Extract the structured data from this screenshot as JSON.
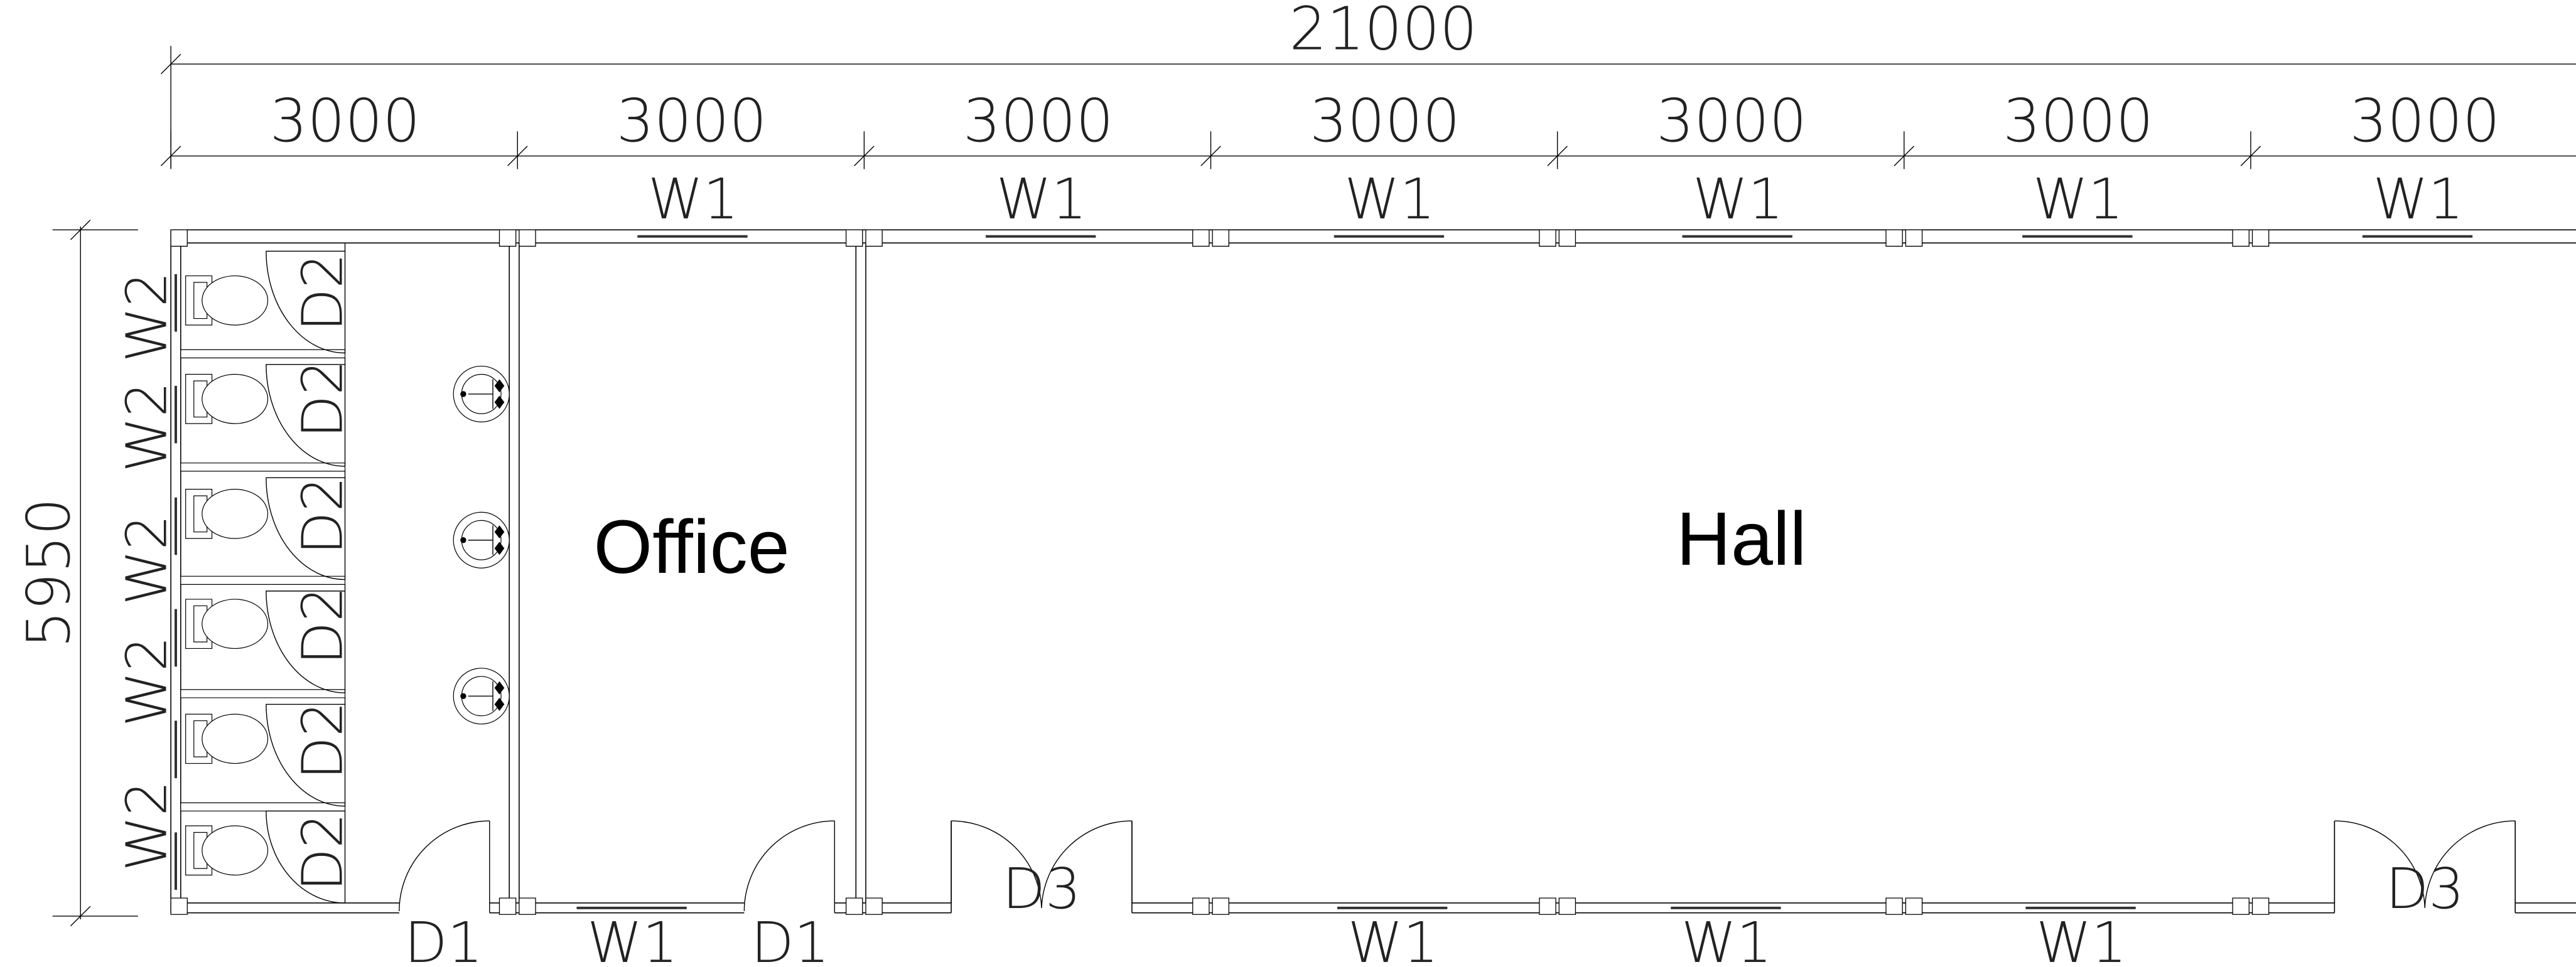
{
  "dimensions": {
    "total_length": "21000",
    "bays": [
      "3000",
      "3000",
      "3000",
      "3000",
      "3000",
      "3000",
      "3000"
    ],
    "depth": "5950"
  },
  "rooms": {
    "office": "Office",
    "hall": "Hall"
  },
  "tags": {
    "window_top": "W1",
    "window_side": "W2",
    "toilet_door": "D2",
    "entry_door": "D1",
    "double_door": "D3",
    "window_bottom": "W1"
  },
  "counts": {
    "toilet_stalls": 6,
    "basins": 3
  }
}
